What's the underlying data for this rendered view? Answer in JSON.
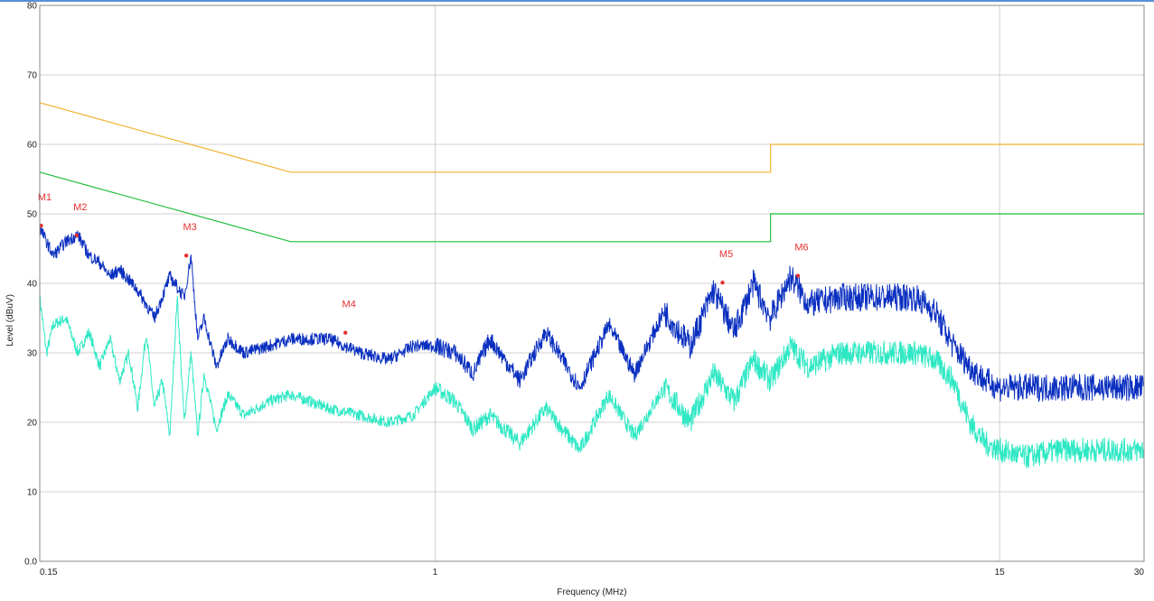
{
  "chart_data": {
    "type": "line",
    "xlabel": "Frequency (MHz)",
    "ylabel": "Level (dBuV)",
    "x_scale": "log",
    "xlim": [
      0.15,
      30
    ],
    "ylim": [
      0,
      80
    ],
    "x_ticks": [
      {
        "value": 0.15,
        "label": "0.15"
      },
      {
        "value": 1,
        "label": "1"
      },
      {
        "value": 15,
        "label": "15"
      },
      {
        "value": 30,
        "label": "30"
      }
    ],
    "y_ticks": [
      {
        "value": 0,
        "label": "0.0"
      },
      {
        "value": 10,
        "label": "10"
      },
      {
        "value": 20,
        "label": "20"
      },
      {
        "value": 30,
        "label": "30"
      },
      {
        "value": 40,
        "label": "40"
      },
      {
        "value": 50,
        "label": "50"
      },
      {
        "value": 60,
        "label": "60"
      },
      {
        "value": 70,
        "label": "70"
      },
      {
        "value": 80,
        "label": "80"
      }
    ],
    "grid": true,
    "colors": {
      "qp_limit": "#f2b02e",
      "avg_limit": "#1fbf3a",
      "peak_trace": "#0a2fc0",
      "avg_trace": "#2ee8c4",
      "marker": "#e53030",
      "grid": "#d0d0d0"
    },
    "series": [
      {
        "key": "qp_limit",
        "x": [
          0.15,
          0.5,
          5,
          5,
          30
        ],
        "values": [
          66,
          56,
          56,
          60,
          60
        ]
      },
      {
        "key": "avg_limit",
        "x": [
          0.15,
          0.5,
          5,
          5,
          30
        ],
        "values": [
          56,
          46,
          46,
          50,
          50
        ]
      },
      {
        "key": "peak_trace",
        "x": [
          0.15,
          0.16,
          0.17,
          0.18,
          0.19,
          0.2,
          0.21,
          0.22,
          0.24,
          0.26,
          0.28,
          0.3,
          0.31,
          0.32,
          0.33,
          0.35,
          0.37,
          0.4,
          0.45,
          0.5,
          0.55,
          0.6,
          0.7,
          0.8,
          0.85,
          0.9,
          1.0,
          1.1,
          1.2,
          1.3,
          1.5,
          1.7,
          2.0,
          2.3,
          2.6,
          3.0,
          3.4,
          3.8,
          4.2,
          4.6,
          5.0,
          5.5,
          6.0,
          7.0,
          8.0,
          9.0,
          10.0,
          11.0,
          12.0,
          13.0,
          14.0,
          15.0,
          17.0,
          20.0,
          25.0,
          30.0
        ],
        "values": [
          48,
          44,
          46,
          47,
          44,
          43,
          41,
          42,
          39,
          35,
          41,
          38,
          44,
          32,
          35,
          28,
          32,
          30,
          31,
          32,
          32,
          32,
          30,
          29,
          30,
          31,
          31,
          30,
          27,
          32,
          26,
          33,
          25,
          34,
          27,
          36,
          31,
          39,
          33,
          40,
          35,
          41,
          37,
          38,
          38,
          38,
          38,
          36,
          31,
          28,
          26,
          25,
          25,
          25,
          25,
          25
        ]
      },
      {
        "key": "avg_trace",
        "x": [
          0.15,
          0.155,
          0.16,
          0.17,
          0.18,
          0.19,
          0.2,
          0.21,
          0.22,
          0.23,
          0.24,
          0.25,
          0.26,
          0.27,
          0.28,
          0.29,
          0.3,
          0.31,
          0.32,
          0.33,
          0.35,
          0.37,
          0.4,
          0.45,
          0.5,
          0.55,
          0.6,
          0.7,
          0.8,
          0.9,
          1.0,
          1.1,
          1.2,
          1.3,
          1.5,
          1.7,
          2.0,
          2.3,
          2.6,
          3.0,
          3.4,
          3.8,
          4.2,
          4.6,
          5.0,
          5.5,
          6.0,
          7.0,
          8.0,
          9.0,
          10.0,
          11.0,
          12.0,
          13.0,
          14.0,
          15.0,
          17.0,
          20.0,
          25.0,
          30.0
        ],
        "values": [
          38,
          30,
          34,
          35,
          30,
          33,
          28,
          32,
          26,
          30,
          22,
          33,
          22,
          26,
          18,
          38,
          20,
          30,
          18,
          27,
          19,
          24,
          21,
          23,
          24,
          23,
          22,
          21,
          20,
          21,
          25,
          23,
          19,
          21,
          17,
          22,
          16,
          24,
          18,
          25,
          20,
          27,
          23,
          29,
          26,
          31,
          28,
          30,
          30,
          30,
          30,
          29,
          26,
          20,
          17,
          16,
          15,
          16,
          16,
          16
        ]
      }
    ],
    "markers": [
      {
        "label": "M1",
        "x": 0.151,
        "y": 48.3
      },
      {
        "label": "M2",
        "x": 0.179,
        "y": 46.9
      },
      {
        "label": "M3",
        "x": 0.303,
        "y": 44.0
      },
      {
        "label": "M4",
        "x": 0.65,
        "y": 32.9
      },
      {
        "label": "M5",
        "x": 3.97,
        "y": 40.1
      },
      {
        "label": "M6",
        "x": 5.7,
        "y": 41.1
      }
    ]
  }
}
